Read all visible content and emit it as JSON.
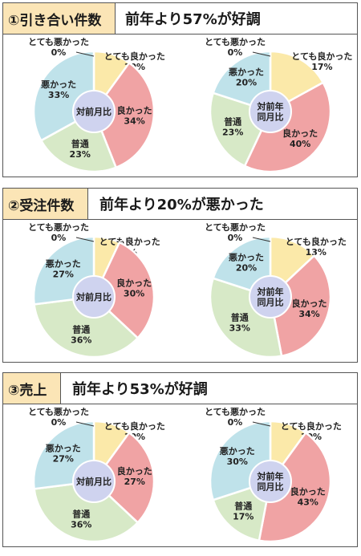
{
  "colors": {
    "very_good": "#fbe9a9",
    "good": "#f0a3a4",
    "normal": "#d7e9c7",
    "bad": "#bfe2ea",
    "very_bad": "#bfe2ea",
    "center": "#cfd3ef",
    "tag_bg": "#fbe5b6"
  },
  "panels": [
    {
      "tag": "①引き合い件数",
      "headline": "前年より57%が好調",
      "charts": [
        {
          "center_label": [
            "対前月比"
          ],
          "slices": [
            {
              "label": "とても良かった",
              "percent": "10%",
              "value": 10
            },
            {
              "label": "良かった",
              "percent": "34%",
              "value": 34
            },
            {
              "label": "普通",
              "percent": "23%",
              "value": 23
            },
            {
              "label": "悪かった",
              "percent": "33%",
              "value": 33
            },
            {
              "label": "とても悪かった",
              "percent": "0%",
              "value": 0
            }
          ]
        },
        {
          "center_label": [
            "対前年",
            "同月比"
          ],
          "slices": [
            {
              "label": "とても良かった",
              "percent": "17%",
              "value": 17
            },
            {
              "label": "良かった",
              "percent": "40%",
              "value": 40
            },
            {
              "label": "普通",
              "percent": "23%",
              "value": 23
            },
            {
              "label": "悪かった",
              "percent": "20%",
              "value": 20
            },
            {
              "label": "とても悪かった",
              "percent": "0%",
              "value": 0
            }
          ]
        }
      ]
    },
    {
      "tag": "②受注件数",
      "headline": "前年より20%が悪かった",
      "charts": [
        {
          "center_label": [
            "対前月比"
          ],
          "slices": [
            {
              "label": "とても良かった",
              "percent": "7%",
              "value": 7
            },
            {
              "label": "良かった",
              "percent": "30%",
              "value": 30
            },
            {
              "label": "普通",
              "percent": "36%",
              "value": 36
            },
            {
              "label": "悪かった",
              "percent": "27%",
              "value": 27
            },
            {
              "label": "とても悪かった",
              "percent": "0%",
              "value": 0
            }
          ]
        },
        {
          "center_label": [
            "対前年",
            "同月比"
          ],
          "slices": [
            {
              "label": "とても良かった",
              "percent": "13%",
              "value": 13
            },
            {
              "label": "良かった",
              "percent": "34%",
              "value": 34
            },
            {
              "label": "普通",
              "percent": "33%",
              "value": 33
            },
            {
              "label": "悪かった",
              "percent": "20%",
              "value": 20
            },
            {
              "label": "とても悪かった",
              "percent": "0%",
              "value": 0
            }
          ]
        }
      ]
    },
    {
      "tag": "③売上",
      "headline": "前年より53%が好調",
      "charts": [
        {
          "center_label": [
            "対前月比"
          ],
          "slices": [
            {
              "label": "とても良かった",
              "percent": "10%",
              "value": 10
            },
            {
              "label": "良かった",
              "percent": "27%",
              "value": 27
            },
            {
              "label": "普通",
              "percent": "36%",
              "value": 36
            },
            {
              "label": "悪かった",
              "percent": "27%",
              "value": 27
            },
            {
              "label": "とても悪かった",
              "percent": "0%",
              "value": 0
            }
          ]
        },
        {
          "center_label": [
            "対前年",
            "同月比"
          ],
          "slices": [
            {
              "label": "とても良かった",
              "percent": "10%",
              "value": 10
            },
            {
              "label": "良かった",
              "percent": "43%",
              "value": 43
            },
            {
              "label": "普通",
              "percent": "17%",
              "value": 17
            },
            {
              "label": "悪かった",
              "percent": "30%",
              "value": 30
            },
            {
              "label": "とても悪かった",
              "percent": "0%",
              "value": 0
            }
          ]
        }
      ]
    }
  ],
  "chart_data": [
    {
      "type": "pie",
      "title": "①引き合い件数 対前月比",
      "categories": [
        "とても良かった",
        "良かった",
        "普通",
        "悪かった",
        "とても悪かった"
      ],
      "values": [
        10,
        34,
        23,
        33,
        0
      ]
    },
    {
      "type": "pie",
      "title": "①引き合い件数 対前年同月比",
      "categories": [
        "とても良かった",
        "良かった",
        "普通",
        "悪かった",
        "とても悪かった"
      ],
      "values": [
        17,
        40,
        23,
        20,
        0
      ]
    },
    {
      "type": "pie",
      "title": "②受注件数 対前月比",
      "categories": [
        "とても良かった",
        "良かった",
        "普通",
        "悪かった",
        "とても悪かった"
      ],
      "values": [
        7,
        30,
        36,
        27,
        0
      ]
    },
    {
      "type": "pie",
      "title": "②受注件数 対前年同月比",
      "categories": [
        "とても良かった",
        "良かった",
        "普通",
        "悪かった",
        "とても悪かった"
      ],
      "values": [
        13,
        34,
        33,
        20,
        0
      ]
    },
    {
      "type": "pie",
      "title": "③売上 対前月比",
      "categories": [
        "とても良かった",
        "良かった",
        "普通",
        "悪かった",
        "とても悪かった"
      ],
      "values": [
        10,
        27,
        36,
        27,
        0
      ]
    },
    {
      "type": "pie",
      "title": "③売上 対前年同月比",
      "categories": [
        "とても良かった",
        "良かった",
        "普通",
        "悪かった",
        "とても悪かった"
      ],
      "values": [
        10,
        43,
        17,
        30,
        0
      ]
    }
  ]
}
